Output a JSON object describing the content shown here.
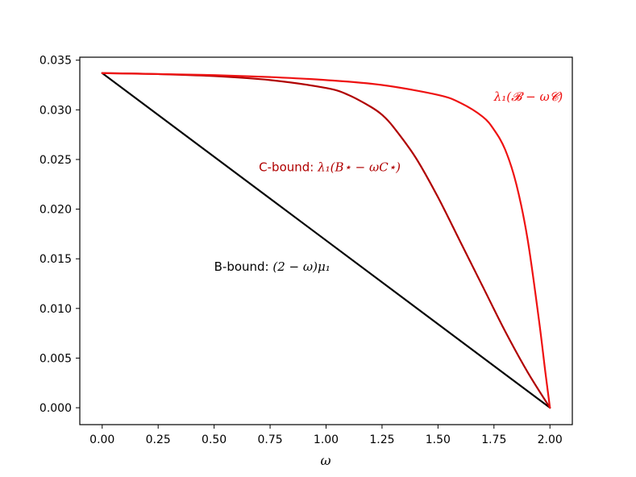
{
  "chart_data": {
    "type": "line",
    "title": "",
    "xlabel": "ω",
    "ylabel": "",
    "xlim": [
      -0.1,
      2.1
    ],
    "ylim": [
      -0.0017,
      0.0353
    ],
    "xticks": [
      0.0,
      0.25,
      0.5,
      0.75,
      1.0,
      1.25,
      1.5,
      1.75,
      2.0
    ],
    "xtick_labels": [
      "0.00",
      "0.25",
      "0.50",
      "0.75",
      "1.00",
      "1.25",
      "1.50",
      "1.75",
      "2.00"
    ],
    "yticks": [
      0.0,
      0.005,
      0.01,
      0.015,
      0.02,
      0.025,
      0.03,
      0.035
    ],
    "ytick_labels": [
      "0.000",
      "0.005",
      "0.010",
      "0.015",
      "0.020",
      "0.025",
      "0.030",
      "0.035"
    ],
    "grid": false,
    "legend": "none",
    "series": [
      {
        "color": "#000000",
        "x": [
          0.0,
          2.0
        ],
        "y": [
          0.0337,
          0.0
        ]
      },
      {
        "color": "#b00000",
        "x": [
          0.0,
          0.25,
          0.5,
          0.75,
          1.0,
          1.1,
          1.2,
          1.25,
          1.3,
          1.4,
          1.5,
          1.6,
          1.7,
          1.8,
          1.9,
          2.0
        ],
        "y": [
          0.0337,
          0.0336,
          0.0334,
          0.033,
          0.0322,
          0.0315,
          0.0303,
          0.0295,
          0.0283,
          0.0252,
          0.0212,
          0.0167,
          0.0122,
          0.0077,
          0.0036,
          0.0
        ]
      },
      {
        "color": "#ee1111",
        "x": [
          0.0,
          0.25,
          0.5,
          0.75,
          1.0,
          1.25,
          1.5,
          1.6,
          1.7,
          1.75,
          1.8,
          1.85,
          1.9,
          1.95,
          1.98,
          2.0
        ],
        "y": [
          0.0337,
          0.0336,
          0.0335,
          0.0333,
          0.033,
          0.0325,
          0.0315,
          0.0307,
          0.0293,
          0.028,
          0.026,
          0.0225,
          0.017,
          0.009,
          0.0035,
          0.0
        ]
      }
    ],
    "annotations": [
      {
        "prefix": "",
        "math": "λ₁(𝓑 − ω𝓒)",
        "color": "#ee1111",
        "x": 1.75,
        "y": 0.0309
      },
      {
        "prefix": "C-bound: ",
        "math": "λ₁(B⋆ − ωC⋆)",
        "color": "#b00000",
        "x": 0.7,
        "y": 0.0238
      },
      {
        "prefix": "B-bound: ",
        "math": "(2 − ω)μ₁",
        "color": "#000000",
        "x": 0.5,
        "y": 0.0138
      }
    ]
  }
}
